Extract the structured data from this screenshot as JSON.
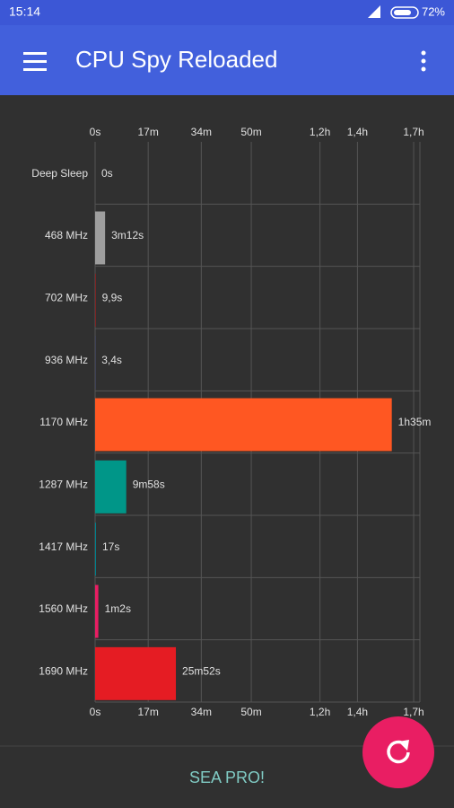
{
  "status_bar": {
    "time": "15:14",
    "battery": "72%"
  },
  "app_bar": {
    "title": "CPU Spy Reloaded"
  },
  "chart_data": {
    "type": "bar",
    "orientation": "horizontal",
    "categories": [
      "Deep Sleep",
      "468 MHz",
      "702 MHz",
      "936 MHz",
      "1170 MHz",
      "1287 MHz",
      "1417 MHz",
      "1560 MHz",
      "1690 MHz"
    ],
    "values": [
      0,
      3.2,
      0.165,
      0.0567,
      95,
      9.967,
      0.2833,
      1.0333,
      25.867
    ],
    "value_labels": [
      "0s",
      "3m12s",
      "9,9s",
      "3,4s",
      "1h35m",
      "9m58s",
      "17s",
      "1m2s",
      "25m52s"
    ],
    "colors": [
      "#9e9e9e",
      "#9e9e9e",
      "#b71c1c",
      "#3f51b5",
      "#ff5722",
      "#009688",
      "#00838f",
      "#e91e63",
      "#e51c23"
    ],
    "xlim": [
      0,
      104
    ],
    "xticks": [
      {
        "value": 0,
        "label": "0s"
      },
      {
        "value": 17,
        "label": "17m"
      },
      {
        "value": 34,
        "label": "34m"
      },
      {
        "value": 50,
        "label": "50m"
      },
      {
        "value": 72,
        "label": "1,2h"
      },
      {
        "value": 84,
        "label": "1,4h"
      },
      {
        "value": 102,
        "label": "1,7h"
      }
    ],
    "grid": true
  },
  "footer": {
    "button": "SEA PRO!"
  }
}
